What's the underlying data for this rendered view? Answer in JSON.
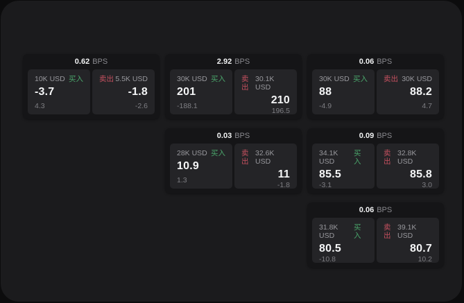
{
  "colors": {
    "buy_green": "#4aa56b",
    "sell_red": "#c4505f",
    "card_bg": "#151517",
    "panel_bg": "#242427",
    "page_bg": "#1b1b1d"
  },
  "cards": [
    {
      "bps": "0.62",
      "bps_unit": "BPS",
      "buy": {
        "amount": "10K USD",
        "side": "买入",
        "value": "-3.7",
        "sub": "4.3"
      },
      "sell": {
        "side": "卖出",
        "amount": "5.5K USD",
        "value": "-1.8",
        "sub": "-2.6"
      }
    },
    {
      "bps": "2.92",
      "bps_unit": "BPS",
      "buy": {
        "amount": "30K USD",
        "side": "买入",
        "value": "201",
        "sub": "-188.1"
      },
      "sell": {
        "side": "卖出",
        "amount": "30.1K USD",
        "value": "210",
        "sub": "196.5"
      }
    },
    {
      "bps": "0.06",
      "bps_unit": "BPS",
      "buy": {
        "amount": "30K USD",
        "side": "买入",
        "value": "88",
        "sub": "-4.9"
      },
      "sell": {
        "side": "卖出",
        "amount": "30K USD",
        "value": "88.2",
        "sub": "4.7"
      }
    },
    {
      "bps": "0.03",
      "bps_unit": "BPS",
      "buy": {
        "amount": "28K USD",
        "side": "买入",
        "value": "10.9",
        "sub": "1.3"
      },
      "sell": {
        "side": "卖出",
        "amount": "32.6K USD",
        "value": "11",
        "sub": "-1.8"
      }
    },
    {
      "bps": "0.09",
      "bps_unit": "BPS",
      "buy": {
        "amount": "34.1K USD",
        "side": "买入",
        "value": "85.5",
        "sub": "-3.1"
      },
      "sell": {
        "side": "卖出",
        "amount": "32.8K USD",
        "value": "85.8",
        "sub": "3.0"
      }
    },
    {
      "bps": "0.06",
      "bps_unit": "BPS",
      "buy": {
        "amount": "31.8K USD",
        "side": "买入",
        "value": "80.5",
        "sub": "-10.8"
      },
      "sell": {
        "side": "卖出",
        "amount": "39.1K USD",
        "value": "80.7",
        "sub": "10.2"
      }
    }
  ]
}
